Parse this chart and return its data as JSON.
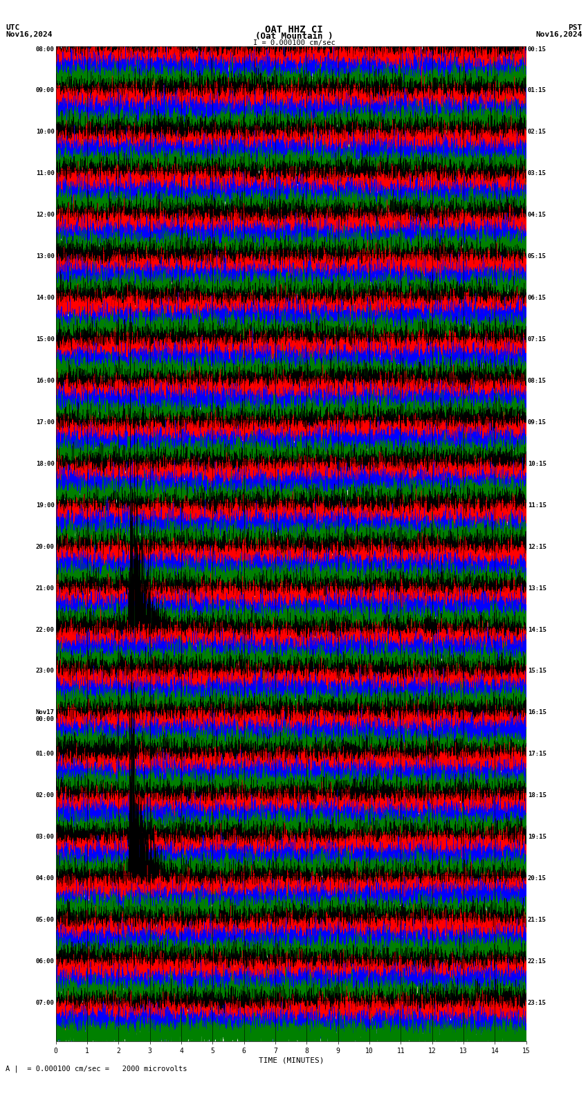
{
  "title_line1": "OAT HHZ CI",
  "title_line2": "(Oat Mountain )",
  "scale_label": "I = 0.000100 cm/sec",
  "utc_label": "UTC",
  "pst_label": "PST",
  "date_left": "Nov16,2024",
  "date_right": "Nov16,2024",
  "xlabel": "TIME (MINUTES)",
  "footer_label": "A |  = 0.000100 cm/sec =   2000 microvolts",
  "left_times": [
    "08:00",
    "09:00",
    "10:00",
    "11:00",
    "12:00",
    "13:00",
    "14:00",
    "15:00",
    "16:00",
    "17:00",
    "18:00",
    "19:00",
    "20:00",
    "21:00",
    "22:00",
    "23:00",
    "Nov17\n00:00",
    "01:00",
    "02:00",
    "03:00",
    "04:00",
    "05:00",
    "06:00",
    "07:00"
  ],
  "right_times": [
    "00:15",
    "01:15",
    "02:15",
    "03:15",
    "04:15",
    "05:15",
    "06:15",
    "07:15",
    "08:15",
    "09:15",
    "10:15",
    "11:15",
    "12:15",
    "13:15",
    "14:15",
    "15:15",
    "16:15",
    "17:15",
    "18:15",
    "19:15",
    "20:15",
    "21:15",
    "22:15",
    "23:15"
  ],
  "num_rows": 24,
  "traces_per_row": 4,
  "minutes_per_row": 15,
  "xticks": [
    0,
    1,
    2,
    3,
    4,
    5,
    6,
    7,
    8,
    9,
    10,
    11,
    12,
    13,
    14,
    15
  ],
  "bg_color": "#ffffff",
  "trace_colors": [
    "#000000",
    "#ff0000",
    "#0000ff",
    "#008000"
  ],
  "seed": 42,
  "fig_width": 8.5,
  "fig_height": 15.84,
  "dpi": 100,
  "plot_bg": "#ffffff",
  "grid_color": "#000000",
  "earthquake1_row": 14,
  "earthquake1_minute": 2.3,
  "earthquake2_row": 20,
  "earthquake2_minute": 2.3,
  "N_samples": 9000,
  "trace_amplitude": 0.42,
  "eq_amplitude": 2.5,
  "linewidth": 0.3
}
